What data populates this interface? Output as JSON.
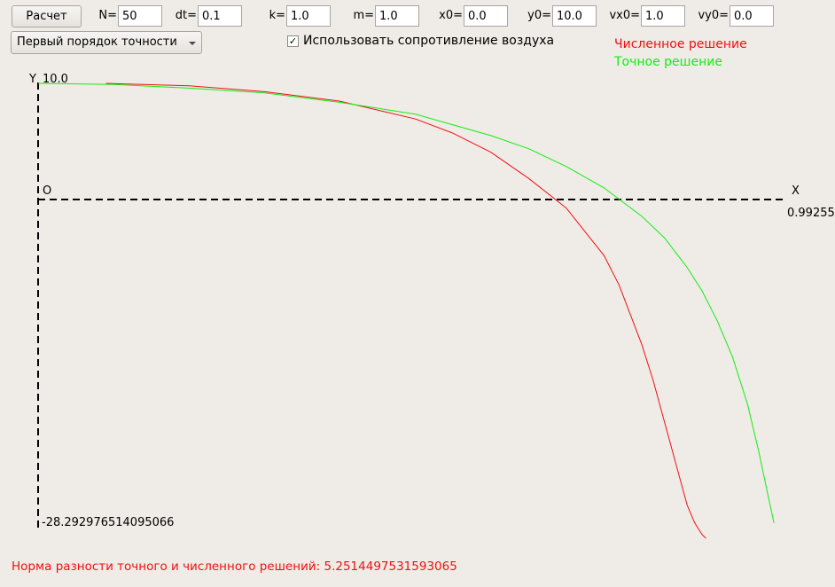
{
  "toolbar": {
    "calc_button": "Расчет",
    "fields": [
      {
        "id": "N",
        "label": "N=",
        "value": "50"
      },
      {
        "id": "dt",
        "label": "dt=",
        "value": "0.1"
      },
      {
        "id": "k",
        "label": "k=",
        "value": "1.0"
      },
      {
        "id": "m",
        "label": "m=",
        "value": "1.0"
      },
      {
        "id": "x0",
        "label": "x0=",
        "value": "0.0"
      },
      {
        "id": "y0",
        "label": "y0=",
        "value": "10.0"
      },
      {
        "id": "vx0",
        "label": "vx0=",
        "value": "1.0"
      },
      {
        "id": "vy0",
        "label": "vy0=",
        "value": "0.0"
      }
    ],
    "order_select": "Первый порядок точности",
    "air_resistance_checkbox": {
      "label": "Использовать сопротивление воздуха",
      "checked": true,
      "mark": "✓"
    }
  },
  "legend": {
    "numeric": {
      "label": "Численное решение",
      "color": "#ee1111"
    },
    "exact": {
      "label": "Точное решение",
      "color": "#11ee11"
    }
  },
  "plot": {
    "x_axis_label": "X",
    "y_axis_label": "Y",
    "origin_label": "O",
    "y_max_label": "10.0",
    "y_min_label": "-28.292976514095066",
    "x_max_label": "0.99255",
    "axis_color": "#000000"
  },
  "chart_data": {
    "type": "line",
    "title": "",
    "xlabel": "X",
    "ylabel": "Y",
    "xlim": [
      0,
      0.99255
    ],
    "ylim": [
      -28.292976514095066,
      10.0
    ],
    "series": [
      {
        "name": "Численное решение",
        "color": "#ee1111",
        "x": [
          0.09,
          0.2,
          0.3,
          0.4,
          0.5,
          0.55,
          0.6,
          0.65,
          0.7,
          0.75,
          0.77,
          0.785,
          0.8,
          0.815,
          0.83,
          0.845,
          0.86,
          0.87,
          0.88,
          0.885
        ],
        "y": [
          10.0,
          9.8,
          9.3,
          8.5,
          7.0,
          5.8,
          4.2,
          2.0,
          -0.5,
          -4.5,
          -7.0,
          -9.5,
          -12.0,
          -15.0,
          -18.5,
          -22.0,
          -25.5,
          -27.0,
          -28.0,
          -28.3
        ]
      },
      {
        "name": "Точное решение",
        "color": "#11ee11",
        "x": [
          0.0,
          0.1,
          0.2,
          0.3,
          0.4,
          0.5,
          0.6,
          0.65,
          0.7,
          0.75,
          0.8,
          0.83,
          0.86,
          0.88,
          0.9,
          0.92,
          0.94,
          0.955,
          0.965,
          0.975
        ],
        "y": [
          10.0,
          9.9,
          9.6,
          9.2,
          8.4,
          7.4,
          5.6,
          4.5,
          3.0,
          1.2,
          -1.2,
          -3.0,
          -5.5,
          -7.5,
          -10.0,
          -13.0,
          -17.0,
          -21.0,
          -24.0,
          -27.0
        ]
      }
    ]
  },
  "status": {
    "norm_text": "Норма разности точного и численного решений: 5.2514497531593065",
    "color": "#ee1111"
  }
}
